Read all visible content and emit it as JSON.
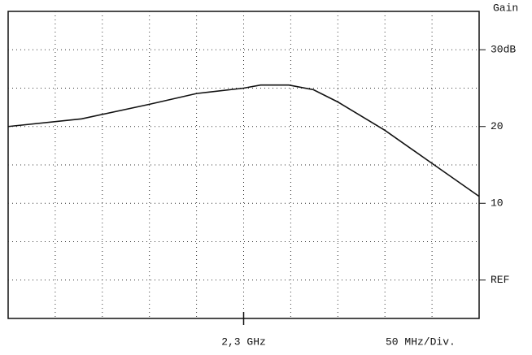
{
  "chart_data": {
    "type": "line",
    "y_label": "Gain",
    "annotation": "50 MHz/Div.",
    "x": [
      2.05,
      2.128,
      2.2,
      2.25,
      2.3,
      2.318,
      2.348,
      2.374,
      2.4,
      2.45,
      2.5,
      2.55
    ],
    "series": [
      {
        "color": "#111111",
        "values": [
          20,
          21,
          22.9,
          24.3,
          25,
          25.4,
          25.4,
          24.8,
          23.2,
          19.5,
          15.2,
          10.9
        ]
      }
    ],
    "xlim": [
      2.05,
      2.55
    ],
    "ylim": [
      -5,
      35
    ],
    "xticks": [
      {
        "value": 2.3,
        "label": "2,3 GHz"
      }
    ],
    "yticks": [
      {
        "value": 30,
        "label": "30dB"
      },
      20,
      10,
      {
        "value": 0,
        "label": "REF"
      }
    ],
    "xgrid": [
      2.1,
      2.15,
      2.2,
      2.25,
      2.3,
      2.35,
      2.4,
      2.45,
      2.5
    ],
    "ygrid": [
      0,
      5,
      10,
      15,
      20,
      25,
      30
    ],
    "grid": true
  }
}
